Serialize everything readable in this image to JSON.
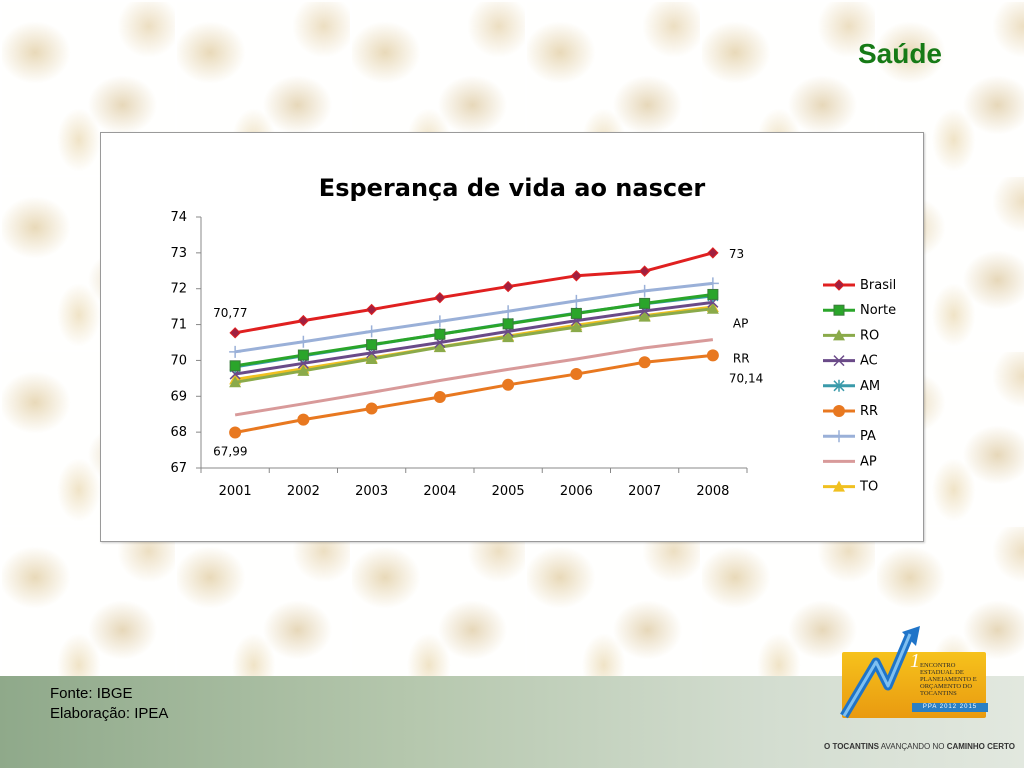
{
  "slide": {
    "title": "Saúde",
    "footer_source": "Fonte: IBGE",
    "footer_author": "Elaboração: IPEA",
    "logo_text": "Encontro Estadual de Planejamento e Orçamento do Tocantins",
    "logo_band": "PPA 2012 2015",
    "logo_number": "1",
    "tagline_part1": "O TOCANTINS",
    "tagline_part2": " AVANÇANDO NO ",
    "tagline_part3": "CAMINHO CERTO"
  },
  "colors": {
    "title_green": "#167a16",
    "Brasil": "#e02020",
    "Norte": "#2aa52a",
    "RO": "#8aaa4a",
    "AC": "#6a4a88",
    "AM": "#3a9aaa",
    "RR": "#e87820",
    "PA": "#9ab0d8",
    "AP": "#d89a9a",
    "TO": "#f0c020"
  },
  "chart_data": {
    "type": "line",
    "title": "Esperança de vida ao nascer",
    "xlabel": "",
    "ylabel": "",
    "ylim": [
      67,
      74
    ],
    "yticks": [
      67,
      68,
      69,
      70,
      71,
      72,
      73,
      74
    ],
    "categories": [
      "2001",
      "2002",
      "2003",
      "2004",
      "2005",
      "2006",
      "2007",
      "2008"
    ],
    "legend_position": "right",
    "grid": false,
    "series": [
      {
        "name": "Brasil",
        "marker": "diamond",
        "values": [
          70.77,
          71.11,
          71.42,
          71.75,
          72.06,
          72.36,
          72.49,
          73.0
        ]
      },
      {
        "name": "Norte",
        "marker": "square",
        "values": [
          69.85,
          70.15,
          70.44,
          70.73,
          71.02,
          71.31,
          71.59,
          71.84
        ]
      },
      {
        "name": "RO",
        "marker": "triangle",
        "values": [
          69.39,
          69.71,
          70.04,
          70.37,
          70.65,
          70.93,
          71.22,
          71.44
        ]
      },
      {
        "name": "AC",
        "marker": "x",
        "values": [
          69.62,
          69.92,
          70.21,
          70.5,
          70.81,
          71.11,
          71.38,
          71.62
        ]
      },
      {
        "name": "AM",
        "marker": "star",
        "values": [
          69.82,
          70.13,
          70.43,
          70.73,
          71.03,
          71.32,
          71.58,
          71.8
        ]
      },
      {
        "name": "RR",
        "marker": "circle",
        "values": [
          67.99,
          68.35,
          68.66,
          68.98,
          69.32,
          69.62,
          69.95,
          70.14
        ]
      },
      {
        "name": "PA",
        "marker": "plus",
        "values": [
          70.24,
          70.52,
          70.81,
          71.09,
          71.37,
          71.66,
          71.94,
          72.15
        ]
      },
      {
        "name": "AP",
        "marker": "none",
        "values": [
          68.48,
          68.79,
          69.11,
          69.44,
          69.75,
          70.04,
          70.35,
          70.58
        ]
      },
      {
        "name": "TO",
        "marker": "triangle",
        "values": [
          69.47,
          69.77,
          70.07,
          70.38,
          70.68,
          70.98,
          71.25,
          71.49
        ]
      }
    ],
    "annotations": [
      {
        "text": "70,77",
        "series": "Brasil",
        "category": "2001",
        "position": "above-left"
      },
      {
        "text": "73",
        "series": "Brasil",
        "category": "2008",
        "position": "right"
      },
      {
        "text": "AP",
        "series": "AP",
        "category": "2008",
        "position": "upper-right"
      },
      {
        "text": "RR",
        "series": "RR",
        "category": "2008",
        "position": "upper-right"
      },
      {
        "text": "70,14",
        "series": "RR",
        "category": "2008",
        "position": "lower-right"
      },
      {
        "text": "67,99",
        "series": "RR",
        "category": "2001",
        "position": "below"
      }
    ]
  }
}
